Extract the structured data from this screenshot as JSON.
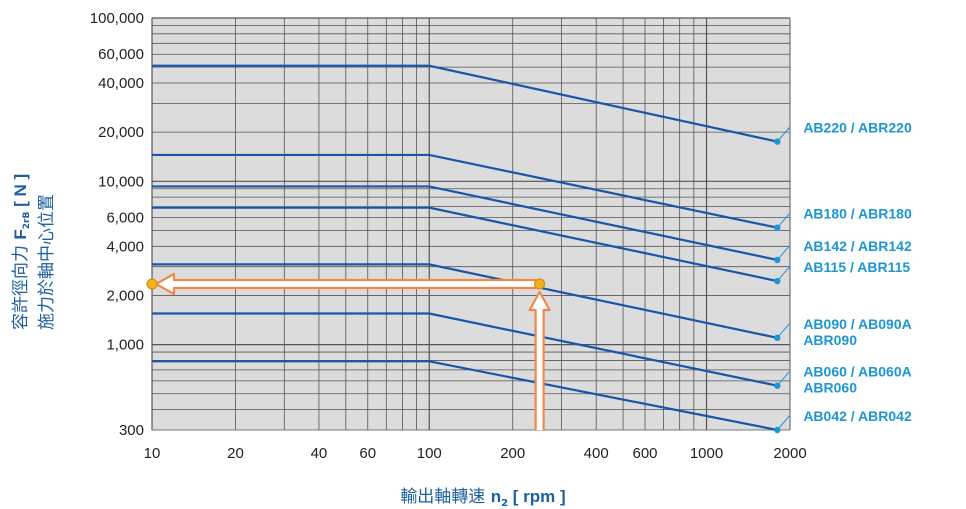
{
  "chart_data": {
    "type": "line",
    "x_scale": "log",
    "y_scale": "log",
    "xlim": [
      10,
      2000
    ],
    "ylim": [
      300,
      100000
    ],
    "x_ticks": [
      10,
      20,
      40,
      60,
      100,
      200,
      400,
      600,
      1000,
      2000
    ],
    "x_tick_labels": [
      "10",
      "20",
      "40",
      "60",
      "100",
      "200",
      "400",
      "600",
      "1000",
      "2000"
    ],
    "y_ticks": [
      300,
      1000,
      2000,
      4000,
      6000,
      10000,
      20000,
      40000,
      60000,
      100000
    ],
    "y_tick_labels": [
      "300",
      "1,000",
      "2,000",
      "4,000",
      "6,000",
      "10,000",
      "20,000",
      "40,000",
      "60,000",
      "100,000"
    ],
    "grid": true,
    "legend": "right",
    "xlabel": {
      "prefix": "輸出軸轉速 ",
      "symbol": "n",
      "sub": "2",
      "unit": " [ rpm ]"
    },
    "ylabel": {
      "line1_prefix": "容許徑向力 ",
      "line1_symbol": "F",
      "line1_sub": "2rB",
      "line1_unit": " [ N ]",
      "line2": "施力於軸中心位置"
    },
    "series": [
      {
        "name": "AB220 / ABR220",
        "x": [
          10,
          100,
          1800
        ],
        "y": [
          51000,
          51000,
          17500
        ]
      },
      {
        "name": "AB180 / ABR180",
        "x": [
          10,
          100,
          1800
        ],
        "y": [
          14500,
          14500,
          5200
        ]
      },
      {
        "name": "AB142 / ABR142",
        "x": [
          10,
          100,
          1800
        ],
        "y": [
          9300,
          9300,
          3300
        ]
      },
      {
        "name": "AB115 / ABR115",
        "x": [
          10,
          100,
          1800
        ],
        "y": [
          6900,
          6900,
          2450
        ]
      },
      {
        "name": "AB090 / AB090A",
        "name2": "ABR090",
        "x": [
          10,
          100,
          1800
        ],
        "y": [
          3100,
          3100,
          1100
        ]
      },
      {
        "name": "AB060 / AB060A",
        "name2": "ABR060",
        "x": [
          10,
          100,
          1800
        ],
        "y": [
          1550,
          1550,
          560
        ]
      },
      {
        "name": "AB042 / ABR042",
        "x": [
          10,
          100,
          1800
        ],
        "y": [
          790,
          790,
          300
        ]
      }
    ],
    "annotation": {
      "point": [
        250,
        2350
      ],
      "arrow_from_x": 250,
      "arrow_to_x": 10,
      "y": 2350
    },
    "colors": {
      "line": "#1a56a8",
      "label": "#1e96d2",
      "plot_bg": "#dcdcdc",
      "grid": "#555555",
      "arrow": "#f08a4b",
      "dot": "#f2b01e"
    }
  }
}
